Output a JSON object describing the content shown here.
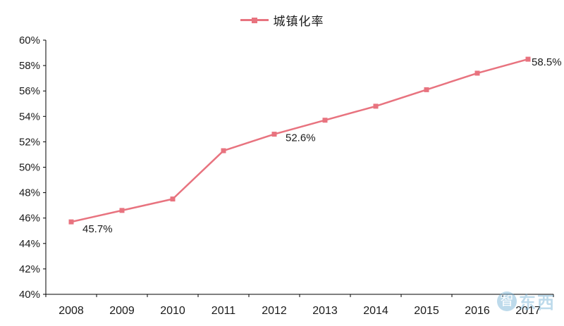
{
  "chart_data": {
    "type": "line",
    "title": "",
    "legend": "城镇化率",
    "categories": [
      "2008",
      "2009",
      "2010",
      "2011",
      "2012",
      "2013",
      "2014",
      "2015",
      "2016",
      "2017"
    ],
    "values": [
      45.7,
      46.6,
      47.5,
      51.3,
      52.6,
      53.7,
      54.8,
      56.1,
      57.4,
      58.5
    ],
    "ylim": [
      40,
      60
    ],
    "ytick_step": 2,
    "ytick_suffix": "%",
    "ytick_labels": [
      "40%",
      "42%",
      "44%",
      "46%",
      "48%",
      "50%",
      "52%",
      "54%",
      "56%",
      "58%",
      "60%"
    ],
    "annotations": [
      {
        "index": 0,
        "text": "45.7%"
      },
      {
        "index": 4,
        "text": "52.6%"
      },
      {
        "index": 9,
        "text": "58.5%"
      }
    ],
    "line_color": "#e8737f",
    "marker": "square",
    "axis_color": "#000000",
    "label_color": "#1a1a1a",
    "legend_position": "top",
    "grid": false
  },
  "watermark": {
    "circle_char": "智",
    "text": "东西"
  }
}
